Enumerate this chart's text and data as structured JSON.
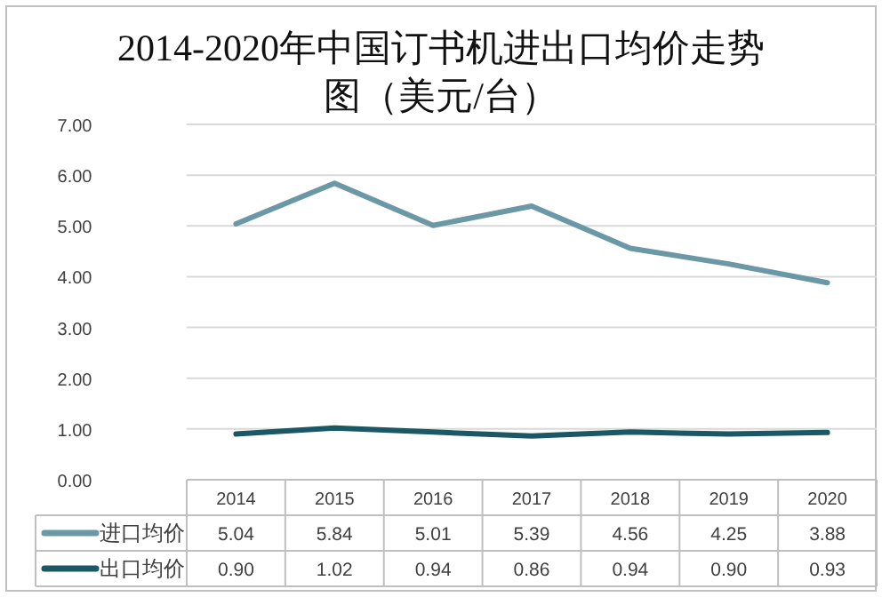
{
  "chart_data": {
    "type": "line",
    "title": "2014-2020年中国订书机进出口均价走势图（美元/台）",
    "categories": [
      "2014",
      "2015",
      "2016",
      "2017",
      "2018",
      "2019",
      "2020"
    ],
    "series": [
      {
        "name": "进口均价",
        "color": "#6b98a6",
        "values": [
          5.04,
          5.84,
          5.01,
          5.39,
          4.56,
          4.25,
          3.88
        ],
        "value_labels": [
          "5.04",
          "5.84",
          "5.01",
          "5.39",
          "4.56",
          "4.25",
          "3.88"
        ]
      },
      {
        "name": "出口均价",
        "color": "#1b5765",
        "values": [
          0.9,
          1.02,
          0.94,
          0.86,
          0.94,
          0.9,
          0.93
        ],
        "value_labels": [
          "0.90",
          "1.02",
          "0.94",
          "0.86",
          "0.94",
          "0.90",
          "0.93"
        ]
      }
    ],
    "ylim": [
      0,
      7
    ],
    "yticks": [
      {
        "value": 0,
        "label": "0.00"
      },
      {
        "value": 1,
        "label": "1.00"
      },
      {
        "value": 2,
        "label": "2.00"
      },
      {
        "value": 3,
        "label": "3.00"
      },
      {
        "value": 4,
        "label": "4.00"
      },
      {
        "value": 5,
        "label": "5.00"
      },
      {
        "value": 6,
        "label": "6.00"
      },
      {
        "value": 7,
        "label": "7.00"
      }
    ],
    "grid": "y",
    "legend": "bottom",
    "marker": "none",
    "line_style": "solid"
  }
}
